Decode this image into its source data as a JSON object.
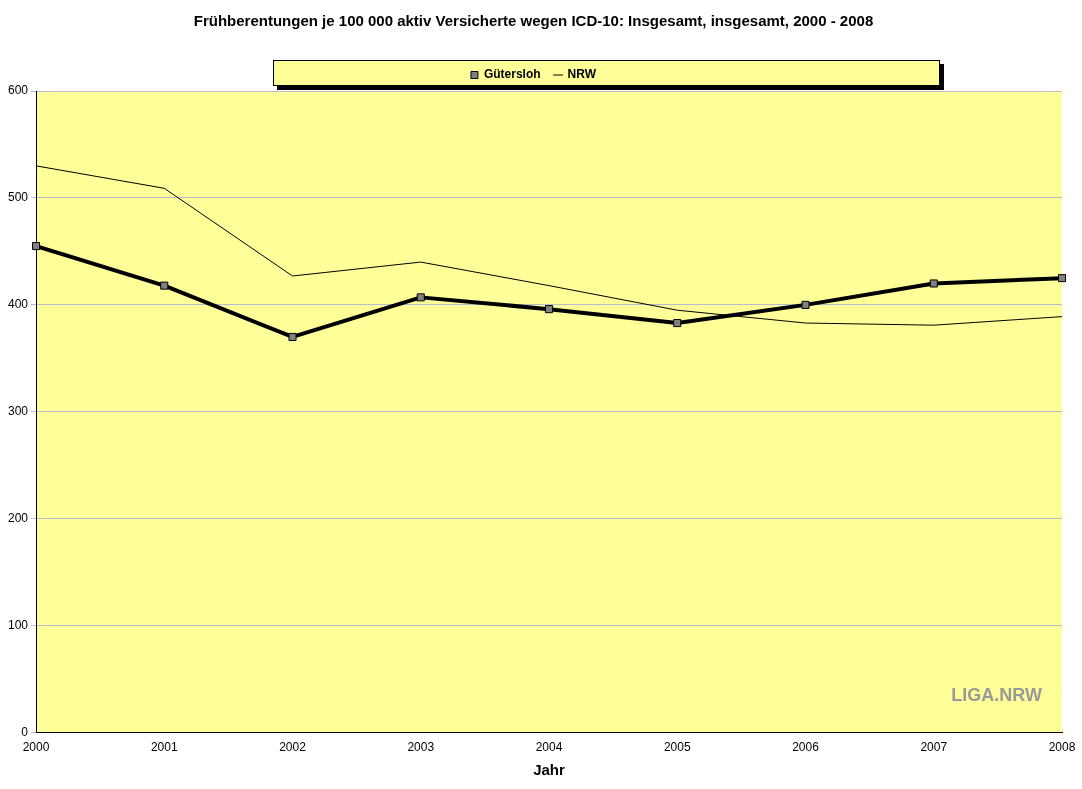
{
  "chart_data": {
    "type": "line",
    "title": "Frühberentungen je 100 000 aktiv Versicherte wegen ICD-10: Insgesamt, insgesamt, 2000 - 2008",
    "xlabel": "Jahr",
    "categories": [
      "2000",
      "2001",
      "2002",
      "2003",
      "2004",
      "2005",
      "2006",
      "2007",
      "2008"
    ],
    "series": [
      {
        "name": "Gütersloh",
        "color": "#000000",
        "marker": "square",
        "values": [
          455,
          418,
          370,
          407,
          396,
          383,
          400,
          420,
          425
        ]
      },
      {
        "name": "NRW",
        "color": "#000000",
        "marker": "none",
        "values": [
          530,
          509,
          427,
          440,
          418,
          395,
          383,
          381,
          389
        ]
      }
    ],
    "ylim": [
      0,
      600
    ],
    "yticks": [
      0,
      100,
      200,
      300,
      400,
      500,
      600
    ],
    "grid": "y",
    "legend": "top",
    "line_style": "solid",
    "annotations": [
      "LIGA.NRW"
    ]
  }
}
